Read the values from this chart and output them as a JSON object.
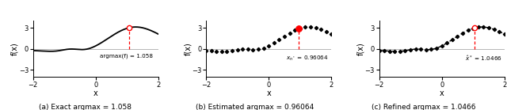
{
  "title_a": "(a) Exact argmax = 1.058",
  "title_b": "(b) Estimated argmax = 0.96064",
  "title_c": "(c) Refined argmax = 1.0466",
  "argmax_exact": 1.058,
  "argmax_estimated": 0.96064,
  "argmax_refined": 1.0466,
  "xlim": [
    -2,
    2
  ],
  "ylim": [
    -4,
    4
  ],
  "yticks": [
    -3,
    0,
    3
  ],
  "xticks": [
    -2,
    0,
    2
  ],
  "xlabel": "x",
  "ylabel": "f(x)",
  "n_samples": 25,
  "line_color": "#000000",
  "dot_color": "#000000",
  "marker_color": "#ff0000",
  "annotation_a": "argmax(f) = 1.058",
  "annotation_b_latex": "x_{n^*} = 0.96064",
  "annotation_c_latex": "\\hat{x}^* = 1.0466",
  "annotation_c_plain": "/ x* = 1.0466"
}
